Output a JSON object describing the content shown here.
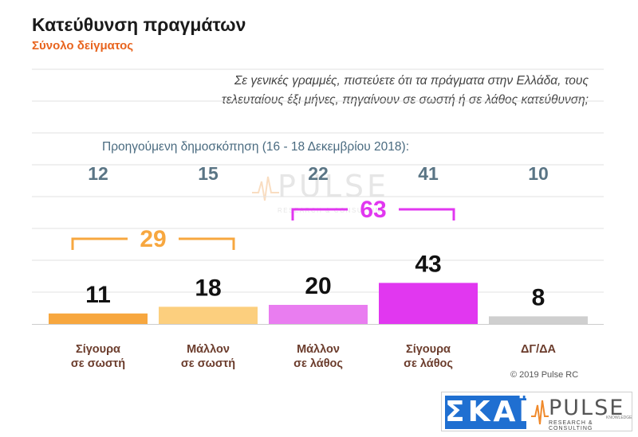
{
  "header": {
    "title": "Κατεύθυνση πραγμάτων",
    "subtitle": "Σύνολο δείγματος"
  },
  "question_line1": "Σε γενικές γραμμές, πιστεύετε ότι τα πράγματα στην Ελλάδα, τους",
  "question_line2": "τελευταίους έξι μήνες, πηγαίνουν σε σωστή ή σε λάθος κατεύθυνση;",
  "previous_label": "Προηγούμενη δημοσκόπηση (16 - 18 Δεκεμβρίου 2018):",
  "watermark": {
    "text": "PULSE",
    "sub": "RESEARCH & CONSULTING"
  },
  "copyright": "© 2019 Pulse RC",
  "logos": {
    "skai": "ΣΚΑΪ",
    "pulse": "PULSE",
    "pulse_sub": "RESEARCH & CONSULTING",
    "pulse_small": "KNOWLEDGE"
  },
  "chart_data": {
    "type": "bar",
    "categories": [
      [
        "Σίγουρα",
        "σε σωστή"
      ],
      [
        "Μάλλον",
        "σε σωστή"
      ],
      [
        "Μάλλον",
        "σε λάθος"
      ],
      [
        "Σίγουρα",
        "σε λάθος"
      ],
      [
        "ΔΓ/ΔΑ"
      ]
    ],
    "values": [
      11,
      18,
      20,
      43,
      8
    ],
    "previous_values": [
      12,
      15,
      22,
      41,
      10
    ],
    "colors": [
      "#f7a73f",
      "#fccf7e",
      "#e97df0",
      "#e137f0",
      "#cfcfcf"
    ],
    "ylim": [
      0,
      100
    ],
    "grid": true,
    "groups": [
      {
        "value": 29,
        "from": 0,
        "to": 1,
        "color": "#f7a73f"
      },
      {
        "value": 63,
        "from": 2,
        "to": 3,
        "color": "#e137f0"
      }
    ],
    "category_color": "#6b3c2c",
    "previous_color": "#5a7585"
  }
}
